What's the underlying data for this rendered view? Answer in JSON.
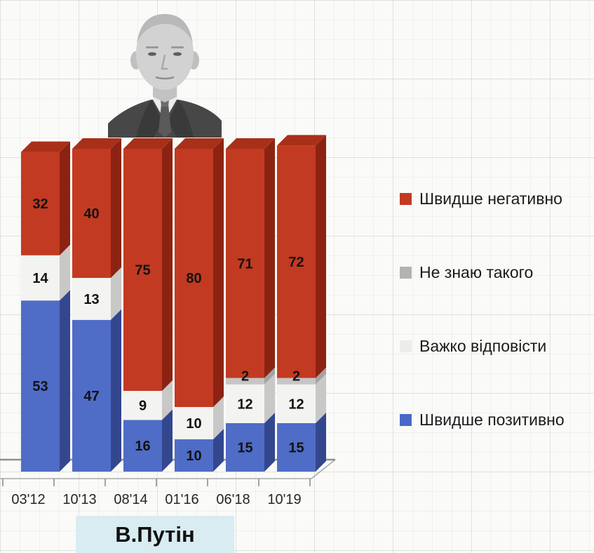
{
  "chart_data": {
    "type": "bar",
    "variant": "3d-stacked-column",
    "title": "В.Путін",
    "categories": [
      "03'12",
      "10'13",
      "08'14",
      "01'16",
      "06'18",
      "10'19"
    ],
    "series": [
      {
        "name": "Швидше позитивно",
        "color": "#4f6cc6",
        "side_color": "#33478f",
        "values": [
          53,
          47,
          16,
          10,
          15,
          15
        ]
      },
      {
        "name": "Важко відповісти",
        "color": "#f3f3f1",
        "side_color": "#c8c8c6",
        "values": [
          14,
          13,
          9,
          10,
          12,
          12
        ]
      },
      {
        "name": "Не знаю такого",
        "color": "#c6c6c6",
        "side_color": "#a3a3a3",
        "values": [
          0,
          0,
          0,
          0,
          2,
          2
        ]
      },
      {
        "name": "Швидше негативно",
        "color": "#c23a21",
        "side_color": "#8c2312",
        "top_color": "#a93018",
        "values": [
          32,
          40,
          75,
          80,
          71,
          72
        ]
      }
    ],
    "ylim": [
      0,
      100
    ],
    "grid": "faint graph-paper background",
    "legend_position": "right",
    "value_labels": "inside segments, bold"
  },
  "legend": {
    "items": [
      {
        "label": "Швидше негативно",
        "color": "#c23a21"
      },
      {
        "label": "Не знаю такого",
        "color": "#b3b3b3"
      },
      {
        "label": "Важко відповісти",
        "color": "#ececea"
      },
      {
        "label": "Швидше позитивно",
        "color": "#4868c8"
      }
    ]
  },
  "footer": {
    "person_label": "В.Путін",
    "person_label_bg": "#d9ecf2"
  }
}
